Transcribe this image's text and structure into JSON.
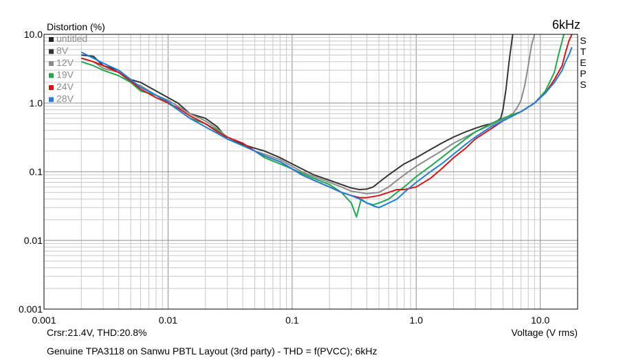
{
  "chart_data": {
    "type": "line",
    "title": "6kHz",
    "ylabel": "Distortion (%)",
    "xlabel": "Voltage (V rms)",
    "x_scale": "log",
    "y_scale": "log",
    "xlim": [
      0.001,
      20
    ],
    "ylim": [
      0.001,
      10
    ],
    "x_tick_labels": [
      "0.001",
      "0.01",
      "0.1",
      "1.0",
      "10.0"
    ],
    "y_tick_labels": [
      "10.0",
      "1.0",
      "0.1",
      "0.01",
      "0.001"
    ],
    "grid": true,
    "legend_position": "top-left",
    "side_label": "STEPS",
    "cursor_readout": "Crsr:21.4V, THD:20.8%",
    "footer": "Genuine TPA3118 on Sanwu PBTL Layout (3rd party) - THD = f(PVCC); 6kHz",
    "series": [
      {
        "name": "untitled",
        "color": "#222222",
        "legend_only": true,
        "x": [],
        "y": []
      },
      {
        "name": "8V",
        "color": "#333333",
        "x": [
          0.002,
          0.0025,
          0.003,
          0.004,
          0.005,
          0.006,
          0.008,
          0.01,
          0.012,
          0.015,
          0.02,
          0.025,
          0.03,
          0.04,
          0.05,
          0.06,
          0.08,
          0.1,
          0.12,
          0.15,
          0.2,
          0.25,
          0.3,
          0.35,
          0.4,
          0.45,
          0.5,
          0.6,
          0.7,
          0.8,
          1.0,
          1.3,
          1.6,
          2.0,
          2.5,
          3.0,
          3.5,
          4.0,
          4.5,
          4.8,
          5.0,
          5.3,
          5.6,
          5.9,
          6.0
        ],
        "y": [
          5.0,
          4.8,
          3.5,
          3.0,
          2.2,
          2.0,
          1.5,
          1.2,
          1.0,
          0.7,
          0.6,
          0.45,
          0.3,
          0.25,
          0.22,
          0.2,
          0.16,
          0.13,
          0.11,
          0.09,
          0.075,
          0.065,
          0.058,
          0.055,
          0.056,
          0.06,
          0.07,
          0.09,
          0.11,
          0.13,
          0.16,
          0.21,
          0.26,
          0.32,
          0.38,
          0.43,
          0.47,
          0.5,
          0.55,
          0.6,
          0.8,
          1.6,
          4.0,
          8.0,
          10.0
        ]
      },
      {
        "name": "12V",
        "color": "#8a8a8a",
        "x": [
          0.002,
          0.0025,
          0.003,
          0.004,
          0.005,
          0.006,
          0.008,
          0.01,
          0.012,
          0.015,
          0.02,
          0.025,
          0.03,
          0.04,
          0.05,
          0.06,
          0.08,
          0.1,
          0.12,
          0.15,
          0.2,
          0.25,
          0.3,
          0.35,
          0.4,
          0.5,
          0.6,
          0.7,
          0.8,
          1.0,
          1.3,
          1.6,
          2.0,
          2.5,
          3.0,
          4.0,
          5.0,
          6.0,
          6.5,
          7.0,
          7.5,
          8.0,
          8.5,
          9.0
        ],
        "y": [
          4.5,
          4.0,
          3.2,
          2.8,
          2.0,
          1.8,
          1.3,
          1.1,
          0.9,
          0.7,
          0.55,
          0.42,
          0.32,
          0.26,
          0.2,
          0.18,
          0.15,
          0.12,
          0.1,
          0.085,
          0.07,
          0.06,
          0.052,
          0.05,
          0.048,
          0.05,
          0.06,
          0.075,
          0.09,
          0.12,
          0.16,
          0.2,
          0.26,
          0.32,
          0.38,
          0.48,
          0.58,
          0.7,
          0.85,
          1.1,
          1.8,
          3.5,
          7.0,
          10.0
        ]
      },
      {
        "name": "19V",
        "color": "#1aaa4a",
        "x": [
          0.002,
          0.0025,
          0.003,
          0.004,
          0.005,
          0.006,
          0.008,
          0.01,
          0.012,
          0.015,
          0.02,
          0.025,
          0.03,
          0.04,
          0.05,
          0.06,
          0.08,
          0.1,
          0.12,
          0.15,
          0.2,
          0.25,
          0.3,
          0.33,
          0.36,
          0.4,
          0.45,
          0.5,
          0.6,
          0.7,
          0.8,
          1.0,
          1.3,
          1.6,
          2.0,
          2.5,
          3.0,
          4.0,
          5.0,
          7.0,
          9.0,
          11.0,
          13.0,
          14.0,
          15.0,
          15.5
        ],
        "y": [
          4.0,
          3.5,
          3.0,
          2.5,
          2.0,
          1.5,
          1.3,
          1.0,
          0.8,
          0.6,
          0.5,
          0.4,
          0.3,
          0.24,
          0.2,
          0.16,
          0.13,
          0.11,
          0.095,
          0.08,
          0.065,
          0.05,
          0.035,
          0.022,
          0.04,
          0.035,
          0.033,
          0.035,
          0.04,
          0.05,
          0.06,
          0.085,
          0.12,
          0.16,
          0.22,
          0.3,
          0.38,
          0.5,
          0.6,
          0.75,
          1.0,
          1.5,
          2.8,
          5.0,
          8.0,
          10.0
        ]
      },
      {
        "name": "24V",
        "color": "#dd1111",
        "x": [
          0.002,
          0.0025,
          0.003,
          0.004,
          0.005,
          0.006,
          0.008,
          0.01,
          0.012,
          0.015,
          0.02,
          0.025,
          0.03,
          0.04,
          0.05,
          0.06,
          0.08,
          0.1,
          0.12,
          0.15,
          0.2,
          0.25,
          0.3,
          0.35,
          0.4,
          0.5,
          0.6,
          0.7,
          0.8,
          1.0,
          1.3,
          1.6,
          2.0,
          2.5,
          3.0,
          4.0,
          5.0,
          7.0,
          9.0,
          11.0,
          13.0,
          15.0,
          16.0,
          17.0,
          18.0
        ],
        "y": [
          4.5,
          4.0,
          3.5,
          2.8,
          2.1,
          1.6,
          1.2,
          1.0,
          0.85,
          0.65,
          0.5,
          0.38,
          0.32,
          0.26,
          0.2,
          0.17,
          0.14,
          0.11,
          0.09,
          0.075,
          0.06,
          0.05,
          0.045,
          0.042,
          0.042,
          0.045,
          0.05,
          0.055,
          0.055,
          0.06,
          0.08,
          0.11,
          0.16,
          0.22,
          0.3,
          0.42,
          0.55,
          0.75,
          1.0,
          1.4,
          2.2,
          3.5,
          5.5,
          8.0,
          10.0
        ]
      },
      {
        "name": "28V",
        "color": "#1a7fe0",
        "x": [
          0.002,
          0.0025,
          0.003,
          0.004,
          0.005,
          0.006,
          0.008,
          0.01,
          0.012,
          0.015,
          0.02,
          0.025,
          0.03,
          0.04,
          0.05,
          0.06,
          0.08,
          0.1,
          0.12,
          0.15,
          0.2,
          0.25,
          0.3,
          0.35,
          0.4,
          0.45,
          0.5,
          0.6,
          0.7,
          0.8,
          1.0,
          1.3,
          1.6,
          2.0,
          2.5,
          3.0,
          4.0,
          5.0,
          7.0,
          9.0,
          11.0,
          13.0,
          15.0,
          16.0,
          17.0,
          18.0
        ],
        "y": [
          5.5,
          4.5,
          3.8,
          3.0,
          2.2,
          1.7,
          1.3,
          1.05,
          0.8,
          0.6,
          0.45,
          0.36,
          0.3,
          0.24,
          0.2,
          0.17,
          0.14,
          0.11,
          0.09,
          0.075,
          0.06,
          0.05,
          0.045,
          0.04,
          0.035,
          0.032,
          0.03,
          0.035,
          0.04,
          0.05,
          0.07,
          0.1,
          0.13,
          0.18,
          0.25,
          0.32,
          0.45,
          0.55,
          0.75,
          1.0,
          1.4,
          2.0,
          3.0,
          4.0,
          5.0,
          6.5
        ]
      }
    ]
  }
}
